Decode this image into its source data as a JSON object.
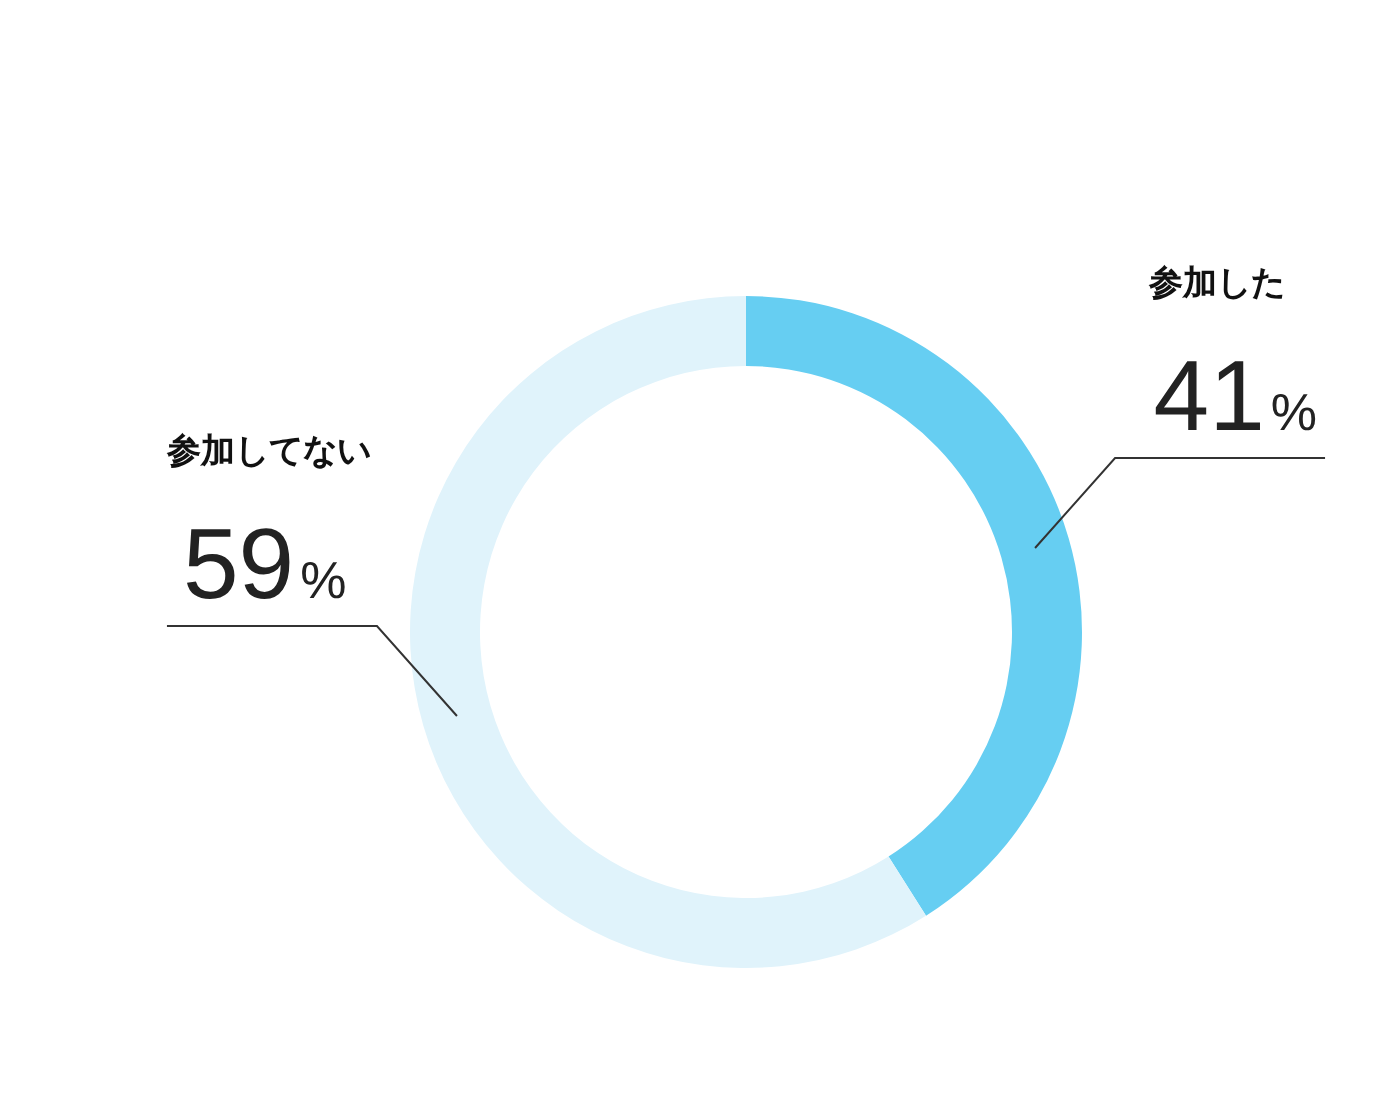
{
  "chart_data": {
    "type": "donut",
    "categories": [
      "参加した",
      "参加してない"
    ],
    "values": [
      41,
      59
    ],
    "colors": [
      "#66cef2",
      "#e0f3fb"
    ],
    "value_labels": [
      "41%",
      "59%"
    ]
  }
}
